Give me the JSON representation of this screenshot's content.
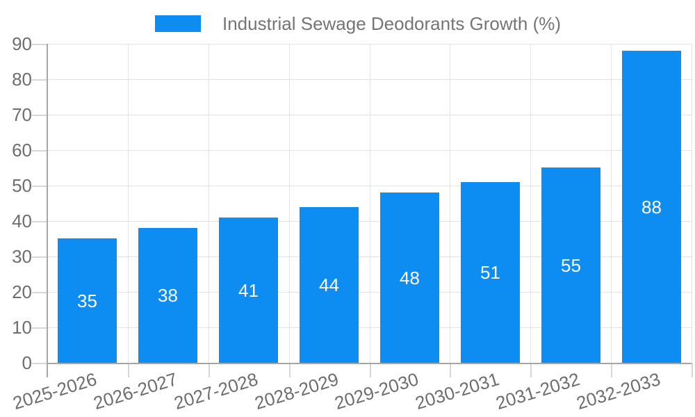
{
  "legend": {
    "label": "Industrial Sewage Deodorants Growth (%)"
  },
  "colors": {
    "bar": "#0d8cf2",
    "grid": "#e3e3e3",
    "tick": "#d6d6d6",
    "axis": "#a6a6a6",
    "axis_label": "#6e6e6e",
    "legend_text": "#757575",
    "value_label": "#ffffff",
    "background": "#ffffff"
  },
  "chart_data": {
    "type": "bar",
    "title": "Industrial Sewage Deodorants Growth (%)",
    "categories": [
      "2025-2026",
      "2026-2027",
      "2027-2028",
      "2028-2029",
      "2029-2030",
      "2030-2031",
      "2031-2032",
      "2032-2033"
    ],
    "values": [
      35,
      38,
      41,
      44,
      48,
      51,
      55,
      88
    ],
    "value_labels": [
      "35",
      "38",
      "41",
      "44",
      "48",
      "51",
      "55",
      "88"
    ],
    "value_label_position": "inside-center",
    "xlabel": "",
    "ylabel": "",
    "ylim": [
      0,
      90
    ],
    "yticks": [
      0,
      10,
      20,
      30,
      40,
      50,
      60,
      70,
      80,
      90
    ],
    "grid": "horizontal-and-vertical",
    "legend_position": "top-center",
    "x_tick_rotation_deg": -17
  }
}
